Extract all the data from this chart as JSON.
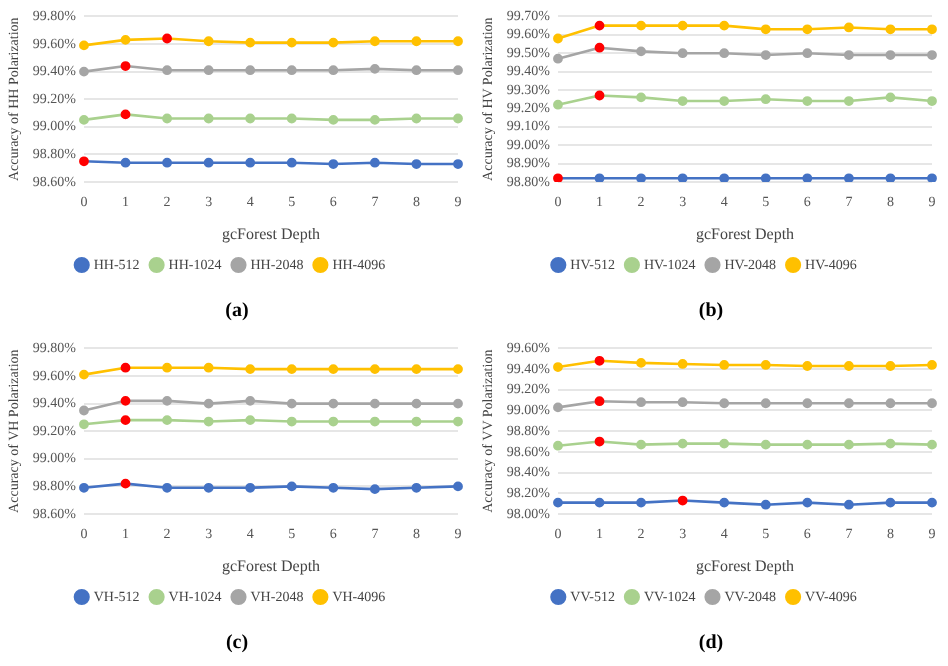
{
  "chart_data": [
    {
      "type": "line",
      "xlabel": "gcForest Depth",
      "ylabel": "Accuracy of HH Polarization",
      "annotations": [
        "(a)"
      ],
      "legend": "bottom",
      "grid": "y",
      "marker": "circle",
      "categories": [
        "0",
        "1",
        "2",
        "3",
        "4",
        "5",
        "6",
        "7",
        "8",
        "9"
      ],
      "ylim": [
        98.6,
        99.8
      ],
      "yticks": [
        {
          "value": 98.6,
          "label": "98.60%"
        },
        {
          "value": 98.8,
          "label": "98.80%"
        },
        {
          "value": 99.0,
          "label": "99.00%"
        },
        {
          "value": 99.2,
          "label": "99.20%"
        },
        {
          "value": 99.4,
          "label": "99.40%"
        },
        {
          "value": 99.6,
          "label": "99.60%"
        },
        {
          "value": 99.8,
          "label": "99.80%"
        }
      ],
      "series": [
        {
          "name": "HH-512",
          "color": "#4472c4",
          "colors": [
            "#ff0000",
            "#4472c4",
            "#4472c4",
            "#4472c4",
            "#4472c4",
            "#4472c4",
            "#4472c4",
            "#4472c4",
            "#4472c4",
            "#4472c4"
          ],
          "values": [
            98.75,
            98.74,
            98.74,
            98.74,
            98.74,
            98.74,
            98.73,
            98.74,
            98.73,
            98.73
          ]
        },
        {
          "name": "HH-1024",
          "color": "#a9d18e",
          "colors": [
            "#a9d18e",
            "#ff0000",
            "#a9d18e",
            "#a9d18e",
            "#a9d18e",
            "#a9d18e",
            "#a9d18e",
            "#a9d18e",
            "#a9d18e",
            "#a9d18e"
          ],
          "values": [
            99.05,
            99.09,
            99.06,
            99.06,
            99.06,
            99.06,
            99.05,
            99.05,
            99.06,
            99.06
          ]
        },
        {
          "name": "HH-2048",
          "color": "#a5a5a5",
          "colors": [
            "#a5a5a5",
            "#ff0000",
            "#a5a5a5",
            "#a5a5a5",
            "#a5a5a5",
            "#a5a5a5",
            "#a5a5a5",
            "#a5a5a5",
            "#a5a5a5",
            "#a5a5a5"
          ],
          "values": [
            99.4,
            99.44,
            99.41,
            99.41,
            99.41,
            99.41,
            99.41,
            99.42,
            99.41,
            99.41
          ]
        },
        {
          "name": "HH-4096",
          "color": "#ffc000",
          "colors": [
            "#ffc000",
            "#ffc000",
            "#ff0000",
            "#ffc000",
            "#ffc000",
            "#ffc000",
            "#ffc000",
            "#ffc000",
            "#ffc000",
            "#ffc000"
          ],
          "values": [
            99.59,
            99.63,
            99.64,
            99.62,
            99.61,
            99.61,
            99.61,
            99.62,
            99.62,
            99.62
          ]
        }
      ]
    },
    {
      "type": "line",
      "xlabel": "gcForest Depth",
      "ylabel": "Accuracy of HV Polarization",
      "annotations": [
        "(b)"
      ],
      "legend": "bottom",
      "grid": "y",
      "marker": "circle",
      "categories": [
        "0",
        "1",
        "2",
        "3",
        "4",
        "5",
        "6",
        "7",
        "8",
        "9"
      ],
      "ylim": [
        98.8,
        99.7
      ],
      "yticks": [
        {
          "value": 98.8,
          "label": "98.80%"
        },
        {
          "value": 98.9,
          "label": "98.90%"
        },
        {
          "value": 99.0,
          "label": "99.00%"
        },
        {
          "value": 99.1,
          "label": "99.10%"
        },
        {
          "value": 99.2,
          "label": "99.20%"
        },
        {
          "value": 99.3,
          "label": "99.30%"
        },
        {
          "value": 99.4,
          "label": "99.40%"
        },
        {
          "value": 99.5,
          "label": "99.50%"
        },
        {
          "value": 99.6,
          "label": "99.60%"
        },
        {
          "value": 99.7,
          "label": "99.70%"
        }
      ],
      "series": [
        {
          "name": "HV-512",
          "color": "#4472c4",
          "colors": [
            "#ff0000",
            "#4472c4",
            "#4472c4",
            "#4472c4",
            "#4472c4",
            "#4472c4",
            "#4472c4",
            "#4472c4",
            "#4472c4",
            "#4472c4"
          ],
          "values": [
            98.82,
            98.82,
            98.82,
            98.82,
            98.82,
            98.82,
            98.82,
            98.82,
            98.82,
            98.82
          ]
        },
        {
          "name": "HV-1024",
          "color": "#a9d18e",
          "colors": [
            "#a9d18e",
            "#ff0000",
            "#a9d18e",
            "#a9d18e",
            "#a9d18e",
            "#a9d18e",
            "#a9d18e",
            "#a9d18e",
            "#a9d18e",
            "#a9d18e"
          ],
          "values": [
            99.22,
            99.27,
            99.26,
            99.24,
            99.24,
            99.25,
            99.24,
            99.24,
            99.26,
            99.24
          ]
        },
        {
          "name": "HV-2048",
          "color": "#a5a5a5",
          "colors": [
            "#a5a5a5",
            "#ff0000",
            "#a5a5a5",
            "#a5a5a5",
            "#a5a5a5",
            "#a5a5a5",
            "#a5a5a5",
            "#a5a5a5",
            "#a5a5a5",
            "#a5a5a5"
          ],
          "values": [
            99.47,
            99.53,
            99.51,
            99.5,
            99.5,
            99.49,
            99.5,
            99.49,
            99.49,
            99.49
          ]
        },
        {
          "name": "HV-4096",
          "color": "#ffc000",
          "colors": [
            "#ffc000",
            "#ff0000",
            "#ffc000",
            "#ffc000",
            "#ffc000",
            "#ffc000",
            "#ffc000",
            "#ffc000",
            "#ffc000",
            "#ffc000"
          ],
          "values": [
            99.58,
            99.65,
            99.65,
            99.65,
            99.65,
            99.63,
            99.63,
            99.64,
            99.63,
            99.63
          ]
        }
      ]
    },
    {
      "type": "line",
      "xlabel": "gcForest Depth",
      "ylabel": "Accuracy of VH Polarization",
      "annotations": [
        "(c)"
      ],
      "legend": "bottom",
      "grid": "y",
      "marker": "circle",
      "categories": [
        "0",
        "1",
        "2",
        "3",
        "4",
        "5",
        "6",
        "7",
        "8",
        "9"
      ],
      "ylim": [
        98.6,
        99.8
      ],
      "yticks": [
        {
          "value": 98.6,
          "label": "98.60%"
        },
        {
          "value": 98.8,
          "label": "98.80%"
        },
        {
          "value": 99.0,
          "label": "99.00%"
        },
        {
          "value": 99.2,
          "label": "99.20%"
        },
        {
          "value": 99.4,
          "label": "99.40%"
        },
        {
          "value": 99.6,
          "label": "99.60%"
        },
        {
          "value": 99.8,
          "label": "99.80%"
        }
      ],
      "series": [
        {
          "name": "VH-512",
          "color": "#4472c4",
          "colors": [
            "#4472c4",
            "#ff0000",
            "#4472c4",
            "#4472c4",
            "#4472c4",
            "#4472c4",
            "#4472c4",
            "#4472c4",
            "#4472c4",
            "#4472c4"
          ],
          "values": [
            98.79,
            98.82,
            98.79,
            98.79,
            98.79,
            98.8,
            98.79,
            98.78,
            98.79,
            98.8
          ]
        },
        {
          "name": "VH-1024",
          "color": "#a9d18e",
          "colors": [
            "#a9d18e",
            "#ff0000",
            "#a9d18e",
            "#a9d18e",
            "#a9d18e",
            "#a9d18e",
            "#a9d18e",
            "#a9d18e",
            "#a9d18e",
            "#a9d18e"
          ],
          "values": [
            99.25,
            99.28,
            99.28,
            99.27,
            99.28,
            99.27,
            99.27,
            99.27,
            99.27,
            99.27
          ]
        },
        {
          "name": "VH-2048",
          "color": "#a5a5a5",
          "colors": [
            "#a5a5a5",
            "#ff0000",
            "#a5a5a5",
            "#a5a5a5",
            "#a5a5a5",
            "#a5a5a5",
            "#a5a5a5",
            "#a5a5a5",
            "#a5a5a5",
            "#a5a5a5"
          ],
          "values": [
            99.35,
            99.42,
            99.42,
            99.4,
            99.42,
            99.4,
            99.4,
            99.4,
            99.4,
            99.4
          ]
        },
        {
          "name": "VH-4096",
          "color": "#ffc000",
          "colors": [
            "#ffc000",
            "#ff0000",
            "#ffc000",
            "#ffc000",
            "#ffc000",
            "#ffc000",
            "#ffc000",
            "#ffc000",
            "#ffc000",
            "#ffc000"
          ],
          "values": [
            99.61,
            99.66,
            99.66,
            99.66,
            99.65,
            99.65,
            99.65,
            99.65,
            99.65,
            99.65
          ]
        }
      ]
    },
    {
      "type": "line",
      "xlabel": "gcForest Depth",
      "ylabel": "Accuracy of VV Polarization",
      "annotations": [
        "(d)"
      ],
      "legend": "bottom",
      "grid": "y",
      "marker": "circle",
      "categories": [
        "0",
        "1",
        "2",
        "3",
        "4",
        "5",
        "6",
        "7",
        "8",
        "9"
      ],
      "ylim": [
        98.0,
        99.6
      ],
      "yticks": [
        {
          "value": 98.0,
          "label": "98.00%"
        },
        {
          "value": 98.2,
          "label": "98.20%"
        },
        {
          "value": 98.4,
          "label": "98.40%"
        },
        {
          "value": 98.6,
          "label": "98.60%"
        },
        {
          "value": 98.8,
          "label": "98.80%"
        },
        {
          "value": 99.0,
          "label": "99.00%"
        },
        {
          "value": 99.2,
          "label": "99.20%"
        },
        {
          "value": 99.4,
          "label": "99.40%"
        },
        {
          "value": 99.6,
          "label": "99.60%"
        }
      ],
      "series": [
        {
          "name": "VV-512",
          "color": "#4472c4",
          "colors": [
            "#4472c4",
            "#4472c4",
            "#4472c4",
            "#ff0000",
            "#4472c4",
            "#4472c4",
            "#4472c4",
            "#4472c4",
            "#4472c4",
            "#4472c4"
          ],
          "values": [
            98.11,
            98.11,
            98.11,
            98.13,
            98.11,
            98.09,
            98.11,
            98.09,
            98.11,
            98.11
          ]
        },
        {
          "name": "VV-1024",
          "color": "#a9d18e",
          "colors": [
            "#a9d18e",
            "#ff0000",
            "#a9d18e",
            "#a9d18e",
            "#a9d18e",
            "#a9d18e",
            "#a9d18e",
            "#a9d18e",
            "#a9d18e",
            "#a9d18e"
          ],
          "values": [
            98.66,
            98.7,
            98.67,
            98.68,
            98.68,
            98.67,
            98.67,
            98.67,
            98.68,
            98.67
          ]
        },
        {
          "name": "VV-2048",
          "color": "#a5a5a5",
          "colors": [
            "#a5a5a5",
            "#ff0000",
            "#a5a5a5",
            "#a5a5a5",
            "#a5a5a5",
            "#a5a5a5",
            "#a5a5a5",
            "#a5a5a5",
            "#a5a5a5",
            "#a5a5a5"
          ],
          "values": [
            99.03,
            99.09,
            99.08,
            99.08,
            99.07,
            99.07,
            99.07,
            99.07,
            99.07,
            99.07
          ]
        },
        {
          "name": "VV-4096",
          "color": "#ffc000",
          "colors": [
            "#ffc000",
            "#ff0000",
            "#ffc000",
            "#ffc000",
            "#ffc000",
            "#ffc000",
            "#ffc000",
            "#ffc000",
            "#ffc000",
            "#ffc000"
          ],
          "values": [
            99.42,
            99.48,
            99.46,
            99.45,
            99.44,
            99.44,
            99.43,
            99.43,
            99.43,
            99.44
          ]
        }
      ]
    }
  ]
}
